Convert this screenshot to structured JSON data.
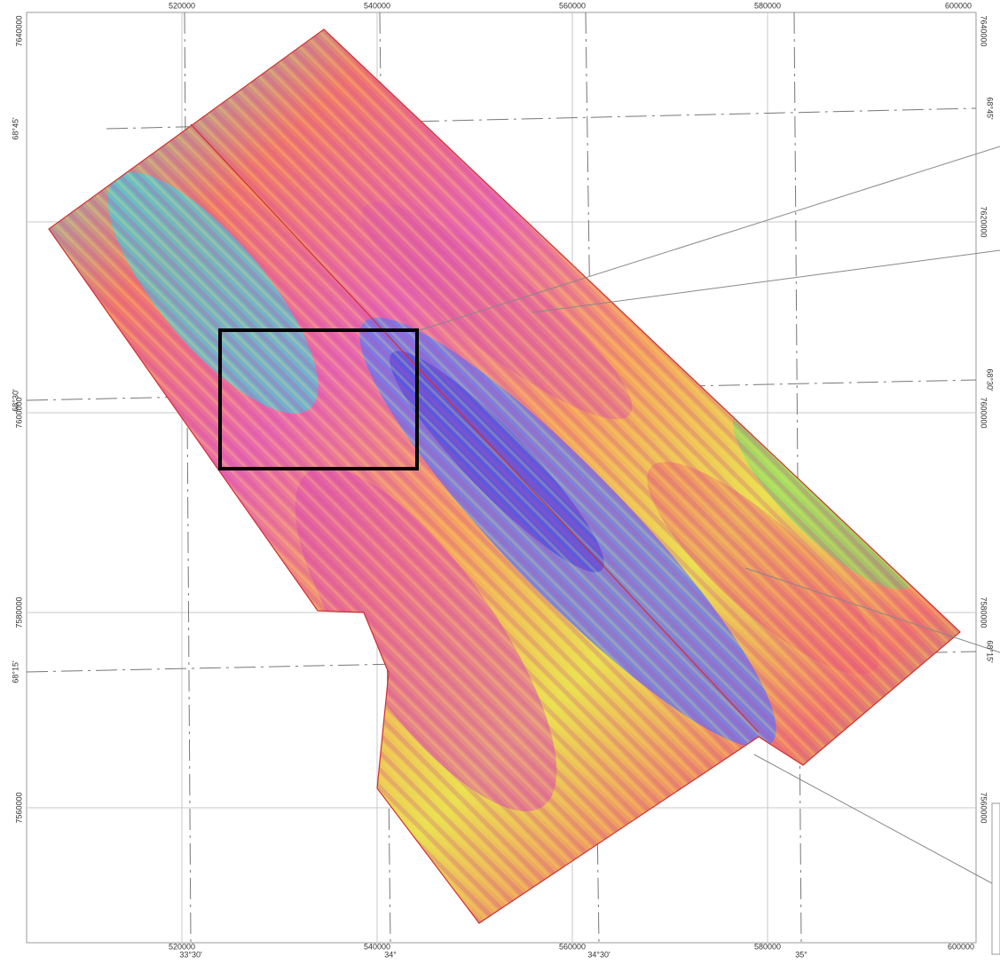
{
  "map": {
    "x_labels_top": [
      "520000",
      "540000",
      "560000",
      "580000",
      "600000"
    ],
    "x_labels_bottom": [
      "520000",
      "540000",
      "560000",
      "580000",
      "600000"
    ],
    "y_labels_left": [
      "7640000",
      "7600000",
      "7580000",
      "7560000"
    ],
    "y_labels_right": [
      "7640000",
      "7620000",
      "7600000",
      "7580000",
      "7560000"
    ],
    "lat_labels_left": [
      "68°45'",
      "68°30'",
      "68°15'"
    ],
    "lat_labels_right": [
      "68°45'",
      "68°30'",
      "68°15'"
    ],
    "lon_labels_bottom": [
      "33°30'",
      "34°",
      "34°30'",
      "35°"
    ]
  }
}
